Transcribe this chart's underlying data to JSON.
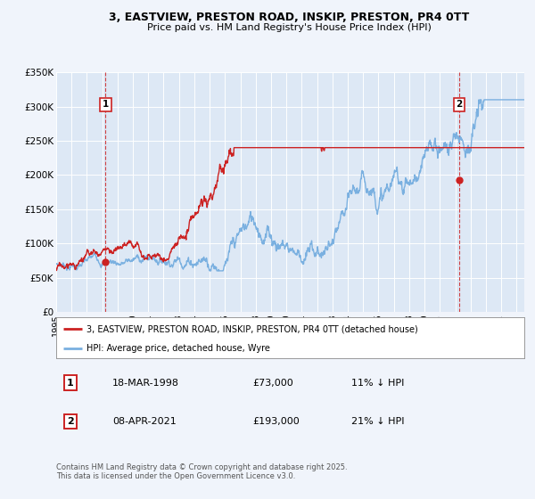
{
  "title_line1": "3, EASTVIEW, PRESTON ROAD, INSKIP, PRESTON, PR4 0TT",
  "title_line2": "Price paid vs. HM Land Registry's House Price Index (HPI)",
  "bg_color": "#f0f4fb",
  "plot_bg_color": "#dde8f5",
  "grid_color": "#ffffff",
  "hpi_color": "#7ab0e0",
  "price_color": "#cc2222",
  "ylim": [
    0,
    350000
  ],
  "yticks": [
    0,
    50000,
    100000,
    150000,
    200000,
    250000,
    300000,
    350000
  ],
  "ytick_labels": [
    "£0",
    "£50K",
    "£100K",
    "£150K",
    "£200K",
    "£250K",
    "£300K",
    "£350K"
  ],
  "xlim_start": 1995.0,
  "xlim_end": 2025.5,
  "marker1_x": 1998.22,
  "marker1_y": 73000,
  "marker1_label": "1",
  "marker1_date": "18-MAR-1998",
  "marker1_price": "£73,000",
  "marker1_hpi": "11% ↓ HPI",
  "marker2_x": 2021.27,
  "marker2_y": 193000,
  "marker2_label": "2",
  "marker2_date": "08-APR-2021",
  "marker2_price": "£193,000",
  "marker2_hpi": "21% ↓ HPI",
  "legend_line1": "3, EASTVIEW, PRESTON ROAD, INSKIP, PRESTON, PR4 0TT (detached house)",
  "legend_line2": "HPI: Average price, detached house, Wyre",
  "footer": "Contains HM Land Registry data © Crown copyright and database right 2025.\nThis data is licensed under the Open Government Licence v3.0."
}
